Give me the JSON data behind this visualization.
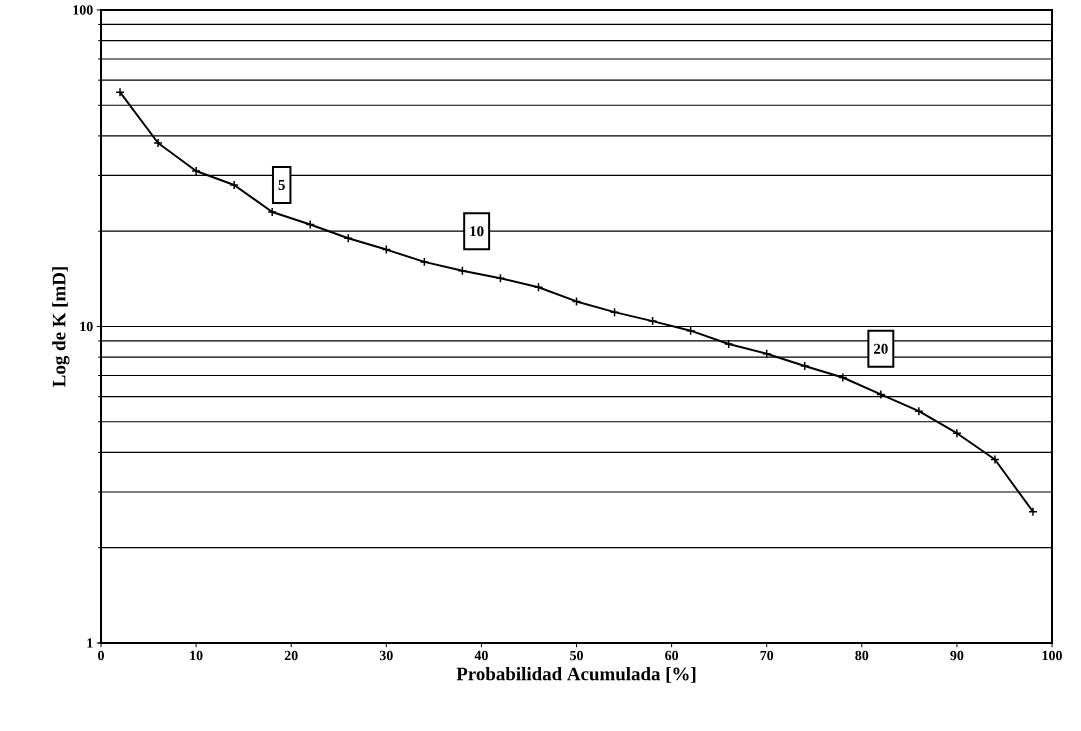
{
  "chart_data": {
    "type": "line",
    "xlabel": "Probabilidad Acumulada [%]",
    "ylabel": "Log de K [mD]",
    "x": [
      2,
      6,
      10,
      14,
      18,
      22,
      26,
      30,
      34,
      38,
      42,
      46,
      50,
      54,
      58,
      62,
      66,
      70,
      74,
      78,
      82,
      86,
      90,
      94,
      98
    ],
    "series": [
      {
        "color": "#000000",
        "values": [
          55,
          38,
          31,
          28,
          23,
          21,
          19,
          17.5,
          16,
          15,
          14.2,
          13.3,
          12,
          11.1,
          10.4,
          9.7,
          8.8,
          8.2,
          7.5,
          6.9,
          6.1,
          5.4,
          4.6,
          3.8,
          2.6
        ]
      }
    ],
    "xlim": [
      0,
      100
    ],
    "xticks": [
      0,
      10,
      20,
      30,
      40,
      50,
      60,
      70,
      80,
      90,
      100
    ],
    "ylim": [
      1,
      100
    ],
    "yticks": [
      1,
      10,
      100
    ],
    "log": "y",
    "grid": "y",
    "marker": "cross",
    "line_style": "solid",
    "annotations": [
      {
        "text": "5",
        "x": 19,
        "y": 28
      },
      {
        "text": "10",
        "x": 39.5,
        "y": 20
      },
      {
        "text": "20",
        "x": 82,
        "y": 8.5
      }
    ]
  }
}
